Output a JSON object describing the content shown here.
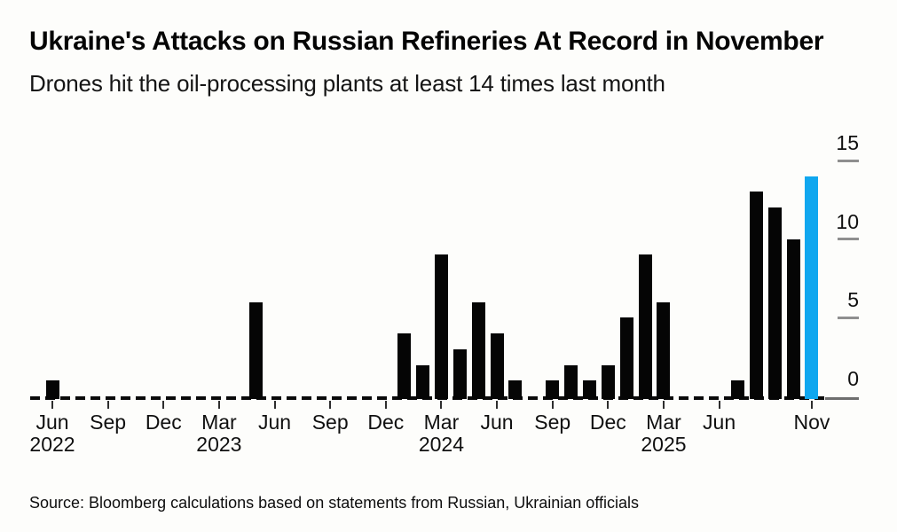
{
  "header": {
    "title": "Ukraine's Attacks on Russian Refineries At Record in November",
    "subtitle": "Drones hit the oil-processing plants at least 14 times last month"
  },
  "footer": {
    "source": "Source: Bloomberg calculations based on statements from Russian, Ukrainian officials"
  },
  "colors": {
    "bar": "#050505",
    "highlight": "#10a7ef",
    "background": "#fdfdfb",
    "y_tick_dash": "#8f8f8f"
  },
  "chart_data": {
    "type": "bar",
    "title": "Ukraine's Attacks on Russian Refineries At Record in November",
    "subtitle": "Drones hit the oil-processing plants at least 14 times last month",
    "ylabel": "",
    "xlabel": "",
    "ylim": [
      0,
      15
    ],
    "y_ticks": [
      0,
      5,
      10,
      15
    ],
    "grid": false,
    "legend": "none",
    "y_axis_side": "right",
    "months": [
      "Jun 2022",
      "Jul 2022",
      "Aug 2022",
      "Sep 2022",
      "Oct 2022",
      "Nov 2022",
      "Dec 2022",
      "Jan 2023",
      "Feb 2023",
      "Mar 2023",
      "Apr 2023",
      "May 2023",
      "Jun 2023",
      "Jul 2023",
      "Aug 2023",
      "Sep 2023",
      "Oct 2023",
      "Nov 2023",
      "Dec 2023",
      "Jan 2024",
      "Feb 2024",
      "Mar 2024",
      "Apr 2024",
      "May 2024",
      "Jun 2024",
      "Jul 2024",
      "Aug 2024",
      "Sep 2024",
      "Oct 2024",
      "Nov 2024",
      "Dec 2024",
      "Jan 2025",
      "Feb 2025",
      "Mar 2025",
      "Apr 2025",
      "May 2025",
      "Jun 2025",
      "Jul 2025",
      "Aug 2025",
      "Sep 2025",
      "Oct 2025",
      "Nov 2025"
    ],
    "values": [
      1,
      0,
      0,
      0,
      0,
      0,
      0,
      0,
      0,
      0,
      0,
      6,
      0,
      0,
      0,
      0,
      0,
      0,
      0,
      4,
      2,
      9,
      3,
      6,
      4,
      1,
      0,
      1,
      2,
      1,
      2,
      5,
      9,
      6,
      0,
      0,
      0,
      1,
      13,
      12,
      10,
      14
    ],
    "x_tick_labels": [
      {
        "index": 0,
        "label": "Jun",
        "year": "2022"
      },
      {
        "index": 3,
        "label": "Sep",
        "year": ""
      },
      {
        "index": 6,
        "label": "Dec",
        "year": ""
      },
      {
        "index": 9,
        "label": "Mar",
        "year": "2023"
      },
      {
        "index": 12,
        "label": "Jun",
        "year": ""
      },
      {
        "index": 15,
        "label": "Sep",
        "year": ""
      },
      {
        "index": 18,
        "label": "Dec",
        "year": ""
      },
      {
        "index": 21,
        "label": "Mar",
        "year": "2024"
      },
      {
        "index": 24,
        "label": "Jun",
        "year": ""
      },
      {
        "index": 27,
        "label": "Sep",
        "year": ""
      },
      {
        "index": 30,
        "label": "Dec",
        "year": ""
      },
      {
        "index": 33,
        "label": "Mar",
        "year": "2025"
      },
      {
        "index": 36,
        "label": "Jun",
        "year": ""
      },
      {
        "index": 41,
        "label": "Nov",
        "year": ""
      }
    ],
    "highlight": {
      "index": 41,
      "month": "Nov 2025",
      "value": 14,
      "color": "#10a7ef"
    }
  }
}
